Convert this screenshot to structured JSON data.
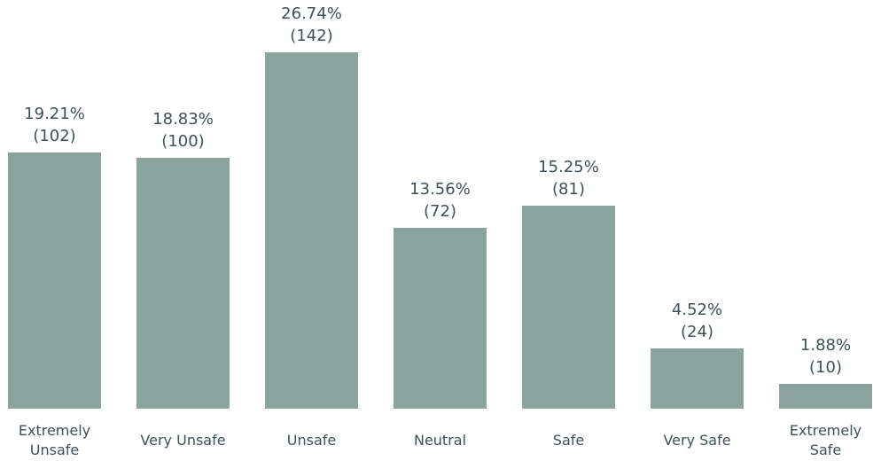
{
  "chart_data": {
    "type": "bar",
    "categories": [
      "Extremely Unsafe",
      "Very Unsafe",
      "Unsafe",
      "Neutral",
      "Safe",
      "Very Safe",
      "Extremely Safe"
    ],
    "values": [
      19.21,
      18.83,
      26.74,
      13.56,
      15.25,
      4.52,
      1.88
    ],
    "value_labels": [
      "19.21%",
      "18.83%",
      "26.74%",
      "13.56%",
      "15.25%",
      "4.52%",
      "1.88%"
    ],
    "counts": [
      102,
      100,
      142,
      72,
      81,
      24,
      10
    ],
    "count_labels": [
      "(102)",
      "(100)",
      "(142)",
      "(72)",
      "(81)",
      "(24)",
      "(10)"
    ],
    "color": "#8aa39d"
  }
}
